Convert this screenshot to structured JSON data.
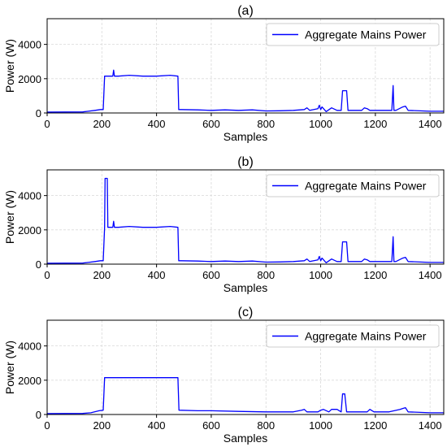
{
  "figure": {
    "panels": [
      {
        "title": "(a)",
        "xlabel": "Samples",
        "ylabel": "Power (W)",
        "legend_label": "Aggregate Mains Power"
      },
      {
        "title": "(b)",
        "xlabel": "Samples",
        "ylabel": "Power (W)",
        "legend_label": "Aggregate Mains Power"
      },
      {
        "title": "(c)",
        "xlabel": "Samples",
        "ylabel": "Power (W)",
        "legend_label": "Aggregate Mains Power"
      }
    ]
  },
  "chart_data": [
    {
      "type": "line",
      "title": "(a)",
      "xlabel": "Samples",
      "ylabel": "Power (W)",
      "xlim": [
        0,
        1450
      ],
      "ylim": [
        0,
        5500
      ],
      "xticks": [
        0,
        200,
        400,
        600,
        800,
        1000,
        1200,
        1400
      ],
      "yticks": [
        0,
        2000,
        4000
      ],
      "grid": true,
      "legend_position": "top-right",
      "color": "#0000ff",
      "series": [
        {
          "name": "Aggregate Mains Power",
          "x": [
            0,
            130,
            150,
            175,
            195,
            200,
            205,
            210,
            240,
            243,
            246,
            260,
            300,
            350,
            400,
            450,
            478,
            481,
            490,
            550,
            600,
            650,
            700,
            750,
            800,
            850,
            900,
            940,
            950,
            960,
            990,
            995,
            1000,
            1005,
            1020,
            1040,
            1060,
            1075,
            1080,
            1095,
            1100,
            1120,
            1150,
            1160,
            1170,
            1180,
            1200,
            1260,
            1265,
            1268,
            1275,
            1300,
            1310,
            1320,
            1400,
            1450
          ],
          "y": [
            50,
            60,
            100,
            150,
            200,
            200,
            200,
            2150,
            2150,
            2500,
            2150,
            2150,
            2200,
            2150,
            2150,
            2200,
            2150,
            200,
            200,
            180,
            150,
            180,
            150,
            180,
            120,
            130,
            150,
            200,
            300,
            150,
            250,
            450,
            200,
            350,
            80,
            300,
            150,
            150,
            1300,
            1300,
            150,
            150,
            150,
            300,
            250,
            150,
            150,
            150,
            1600,
            150,
            150,
            350,
            400,
            150,
            100,
            100
          ]
        }
      ]
    },
    {
      "type": "line",
      "title": "(b)",
      "xlabel": "Samples",
      "ylabel": "Power (W)",
      "xlim": [
        0,
        1450
      ],
      "ylim": [
        0,
        5500
      ],
      "xticks": [
        0,
        200,
        400,
        600,
        800,
        1000,
        1200,
        1400
      ],
      "yticks": [
        0,
        2000,
        4000
      ],
      "grid": true,
      "legend_position": "top-right",
      "color": "#0000ff",
      "series": [
        {
          "name": "Aggregate Mains Power",
          "x": [
            0,
            130,
            150,
            175,
            195,
            200,
            205,
            210,
            212,
            220,
            222,
            240,
            243,
            246,
            260,
            300,
            350,
            400,
            450,
            478,
            481,
            490,
            550,
            600,
            650,
            700,
            750,
            800,
            850,
            900,
            940,
            950,
            960,
            990,
            995,
            1000,
            1005,
            1020,
            1040,
            1060,
            1075,
            1080,
            1095,
            1100,
            1120,
            1150,
            1160,
            1170,
            1180,
            1200,
            1260,
            1265,
            1268,
            1275,
            1300,
            1310,
            1320,
            1400,
            1450
          ],
          "y": [
            50,
            60,
            100,
            150,
            200,
            200,
            200,
            2150,
            5000,
            5000,
            2150,
            2150,
            2500,
            2150,
            2150,
            2200,
            2150,
            2150,
            2200,
            2150,
            200,
            200,
            180,
            150,
            180,
            150,
            180,
            120,
            130,
            150,
            200,
            300,
            150,
            250,
            450,
            200,
            350,
            80,
            300,
            150,
            150,
            1300,
            1300,
            150,
            150,
            150,
            300,
            250,
            150,
            150,
            150,
            1600,
            150,
            150,
            350,
            400,
            150,
            100,
            100
          ]
        }
      ]
    },
    {
      "type": "line",
      "title": "(c)",
      "xlabel": "Samples",
      "ylabel": "Power (W)",
      "xlim": [
        0,
        1450
      ],
      "ylim": [
        0,
        5500
      ],
      "xticks": [
        0,
        200,
        400,
        600,
        800,
        1000,
        1200,
        1400
      ],
      "yticks": [
        0,
        2000,
        4000
      ],
      "grid": true,
      "legend_position": "top-right",
      "color": "#0000ff",
      "series": [
        {
          "name": "Aggregate Mains Power",
          "x": [
            0,
            130,
            160,
            190,
            205,
            210,
            300,
            400,
            470,
            478,
            482,
            550,
            600,
            700,
            800,
            900,
            930,
            940,
            950,
            990,
            1000,
            1010,
            1030,
            1040,
            1060,
            1075,
            1080,
            1088,
            1095,
            1110,
            1170,
            1180,
            1195,
            1250,
            1290,
            1300,
            1310,
            1320,
            1400,
            1450
          ],
          "y": [
            50,
            60,
            100,
            220,
            250,
            2150,
            2150,
            2150,
            2150,
            2150,
            250,
            220,
            220,
            180,
            150,
            150,
            250,
            300,
            150,
            150,
            250,
            300,
            150,
            300,
            300,
            150,
            1200,
            1200,
            150,
            150,
            150,
            300,
            150,
            150,
            300,
            350,
            400,
            150,
            100,
            100
          ]
        }
      ]
    }
  ]
}
